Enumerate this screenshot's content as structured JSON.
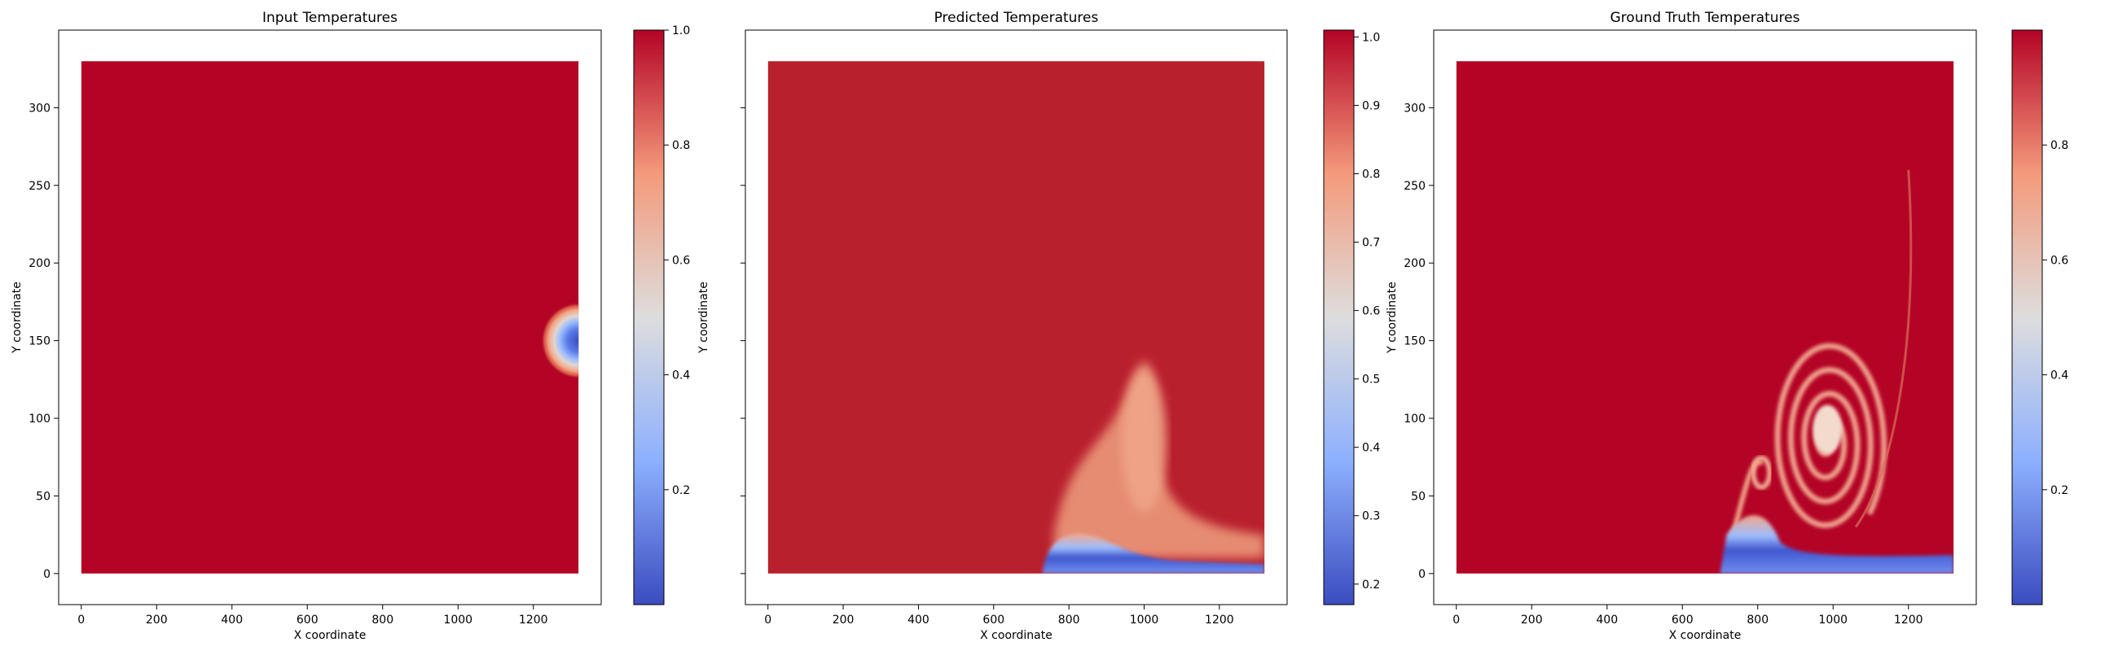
{
  "chart_data": [
    {
      "type": "heatmap",
      "title": "Input Temperatures",
      "xlabel": "X coordinate",
      "ylabel": "Y coordinate",
      "xlim": [
        -60,
        1380
      ],
      "ylim": [
        -20,
        350
      ],
      "x_ticks": [
        0,
        200,
        400,
        600,
        800,
        1000,
        1200
      ],
      "y_ticks": [
        0,
        50,
        100,
        150,
        200,
        250,
        300
      ],
      "y_tick_labels_visible": true,
      "grid_extent": {
        "x": [
          0,
          1320
        ],
        "y": [
          0,
          330
        ]
      },
      "value_range": [
        0.0,
        1.0
      ],
      "colormap": "coolwarm",
      "background_value": 1.0,
      "features": [
        {
          "kind": "cold-blob",
          "center": [
            1320,
            150
          ],
          "radius": 95,
          "min_value": 0.0
        }
      ],
      "colorbar": {
        "range": [
          0.0,
          1.0
        ],
        "ticks": [
          0.2,
          0.4,
          0.6,
          0.8,
          1.0
        ],
        "tick_labels": [
          "0.2",
          "0.4",
          "0.6",
          "0.8",
          "1.0"
        ]
      }
    },
    {
      "type": "heatmap",
      "title": "Predicted Temperatures",
      "xlabel": "X coordinate",
      "ylabel": "Y coordinate",
      "xlim": [
        -60,
        1380
      ],
      "ylim": [
        -20,
        350
      ],
      "x_ticks": [
        0,
        200,
        400,
        600,
        800,
        1000,
        1200
      ],
      "y_ticks": [
        0,
        50,
        100,
        150,
        200,
        250,
        300
      ],
      "y_tick_labels_visible": false,
      "grid_extent": {
        "x": [
          0,
          1320
        ],
        "y": [
          0,
          330
        ]
      },
      "value_range": [
        0.17,
        1.01
      ],
      "colormap": "coolwarm",
      "background_value": 0.97,
      "features": [
        {
          "kind": "warm-plume",
          "center": [
            960,
            70
          ],
          "base_value": 0.78
        },
        {
          "kind": "cold-layer",
          "x_start": 730,
          "y_range": [
            0,
            25
          ],
          "min_value": 0.2
        }
      ],
      "colorbar": {
        "range": [
          0.17,
          1.01
        ],
        "ticks": [
          0.2,
          0.3,
          0.4,
          0.5,
          0.6,
          0.7,
          0.8,
          0.9,
          1.0
        ],
        "tick_labels": [
          "0.2",
          "0.3",
          "0.4",
          "0.5",
          "0.6",
          "0.7",
          "0.8",
          "0.9",
          "1.0"
        ]
      }
    },
    {
      "type": "heatmap",
      "title": "Ground Truth Temperatures",
      "xlabel": "X coordinate",
      "ylabel": "Y coordinate",
      "xlim": [
        -60,
        1380
      ],
      "ylim": [
        -20,
        350
      ],
      "x_ticks": [
        0,
        200,
        400,
        600,
        800,
        1000,
        1200
      ],
      "y_ticks": [
        0,
        50,
        100,
        150,
        200,
        250,
        300
      ],
      "y_tick_labels_visible": true,
      "grid_extent": {
        "x": [
          0,
          1320
        ],
        "y": [
          0,
          330
        ]
      },
      "value_range": [
        0.0,
        1.0
      ],
      "colormap": "coolwarm",
      "background_value": 1.0,
      "features": [
        {
          "kind": "spiral-vortex",
          "center": [
            985,
            85
          ],
          "max_radius": 75,
          "min_value": 0.55
        },
        {
          "kind": "small-vortex",
          "center": [
            810,
            65
          ],
          "min_value": 0.6
        },
        {
          "kind": "cold-layer",
          "x_start": 700,
          "y_range": [
            0,
            40
          ],
          "min_value": 0.05
        }
      ],
      "colorbar": {
        "range": [
          0.0,
          1.0
        ],
        "ticks": [
          0.2,
          0.4,
          0.6,
          0.8
        ],
        "tick_labels": [
          "0.2",
          "0.4",
          "0.6",
          "0.8"
        ]
      }
    }
  ]
}
